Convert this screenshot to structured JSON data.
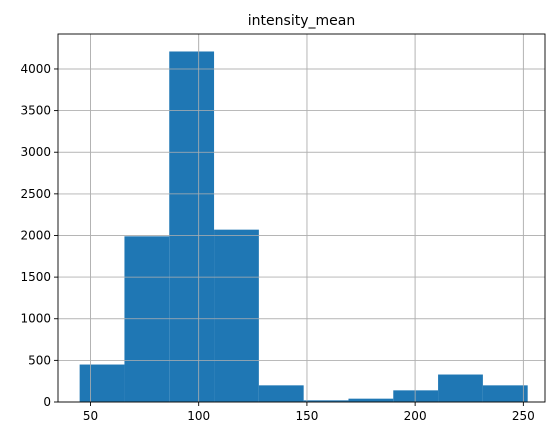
{
  "chart_data": {
    "type": "bar",
    "title": "intensity_mean",
    "xlabel": "",
    "ylabel": "",
    "grid": true,
    "xlim": [
      35,
      260
    ],
    "ylim": [
      0,
      4420
    ],
    "x_ticks": [
      50,
      100,
      150,
      200,
      250
    ],
    "y_ticks": [
      0,
      500,
      1000,
      1500,
      2000,
      2500,
      3000,
      3500,
      4000
    ],
    "bins": [
      {
        "x0": 45.0,
        "x1": 65.7,
        "value": 450
      },
      {
        "x0": 65.7,
        "x1": 86.4,
        "value": 1990
      },
      {
        "x0": 86.4,
        "x1": 107.1,
        "value": 4210
      },
      {
        "x0": 107.1,
        "x1": 127.8,
        "value": 2070
      },
      {
        "x0": 127.8,
        "x1": 148.5,
        "value": 200
      },
      {
        "x0": 148.5,
        "x1": 169.2,
        "value": 20
      },
      {
        "x0": 169.2,
        "x1": 189.9,
        "value": 40
      },
      {
        "x0": 189.9,
        "x1": 210.6,
        "value": 140
      },
      {
        "x0": 210.6,
        "x1": 231.3,
        "value": 330
      },
      {
        "x0": 231.3,
        "x1": 252.0,
        "value": 200
      }
    ],
    "colors": {
      "bar": "#1f77b4",
      "grid": "#b0b0b0",
      "axis": "#000000"
    }
  }
}
